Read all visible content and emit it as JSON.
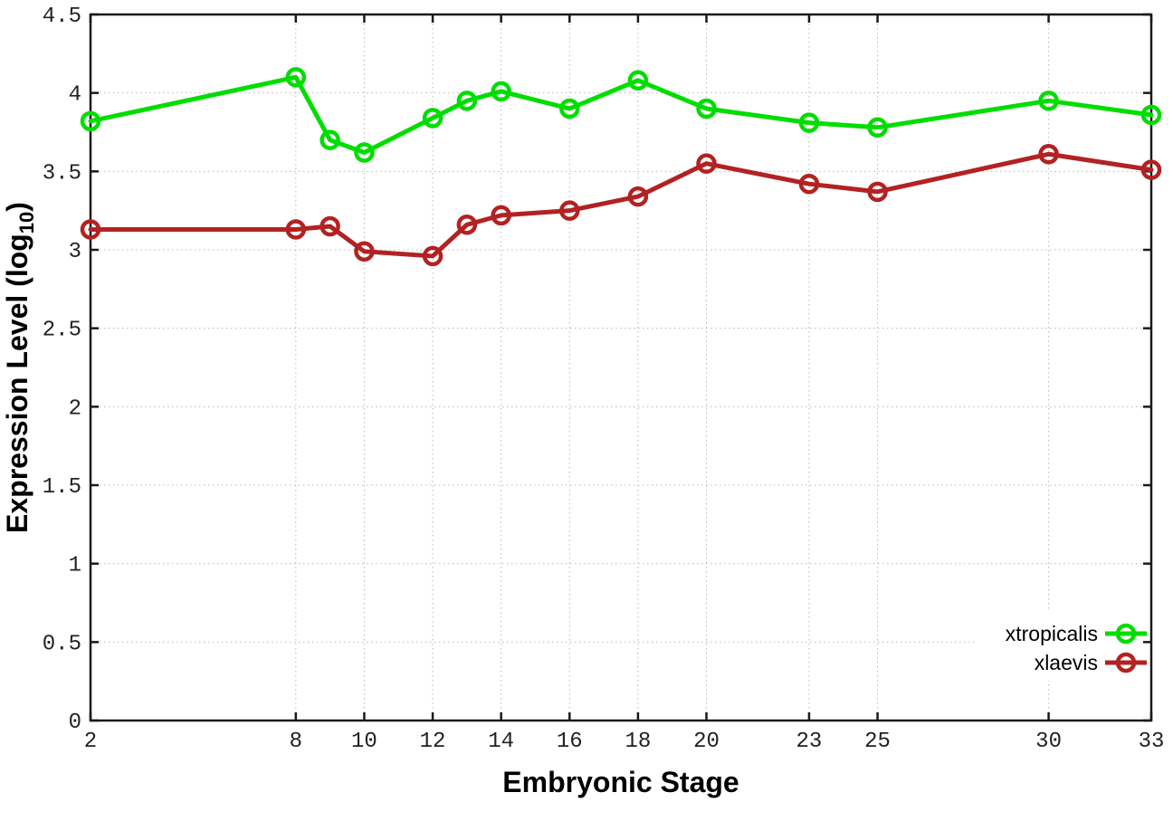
{
  "chart_data": {
    "type": "line",
    "title": "",
    "xlabel": "Embryonic Stage",
    "ylabel": "Expression Level (log10)",
    "ylabel_rich": {
      "pre": "Expression Level (log",
      "sub": "10",
      "post": ")"
    },
    "xlim": [
      2,
      33
    ],
    "ylim": [
      0,
      4.5
    ],
    "xticks": [
      2,
      8,
      10,
      12,
      14,
      16,
      18,
      20,
      23,
      25,
      30,
      33
    ],
    "yticks": [
      0,
      0.5,
      1,
      1.5,
      2,
      2.5,
      3,
      3.5,
      4,
      4.5
    ],
    "grid": true,
    "legend_position": "inside-bottom-right",
    "x": [
      2,
      8,
      9,
      10,
      12,
      13,
      14,
      16,
      18,
      20,
      23,
      25,
      30,
      33
    ],
    "series": [
      {
        "name": "xtropicalis",
        "color": "#00dd00",
        "values": [
          3.82,
          4.1,
          3.7,
          3.62,
          3.84,
          3.95,
          4.01,
          3.9,
          4.08,
          3.9,
          3.81,
          3.78,
          3.95,
          3.86
        ]
      },
      {
        "name": "xlaevis",
        "color": "#b22222",
        "values": [
          3.13,
          3.13,
          3.15,
          2.99,
          2.96,
          3.16,
          3.22,
          3.25,
          3.34,
          3.55,
          3.42,
          3.37,
          3.61,
          3.51
        ]
      }
    ],
    "axis_color": "#1a1a1a",
    "tick_label_color": "#222222",
    "grid_color": "#b8b8b8",
    "background": "#ffffff"
  }
}
